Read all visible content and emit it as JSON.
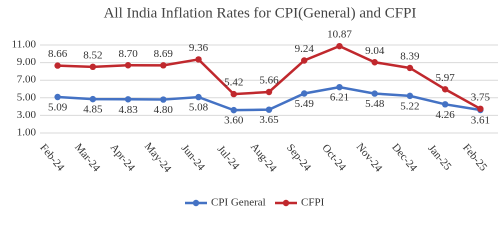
{
  "chart_data": {
    "type": "line",
    "title": "All India Inflation Rates for CPI(General) and CFPI",
    "categories": [
      "Feb-24",
      "Mar-24",
      "Apr-24",
      "May-24",
      "Jun-24",
      "Jul-24",
      "Aug-24",
      "Sep-24",
      "Oct-24",
      "Nov-24",
      "Dec-24",
      "Jan-25",
      "Feb-25"
    ],
    "series": [
      {
        "name": "CPI General",
        "color": "#4472c4",
        "values": [
          5.09,
          4.85,
          4.83,
          4.8,
          5.08,
          3.6,
          3.65,
          5.49,
          6.21,
          5.48,
          5.22,
          4.26,
          3.61
        ],
        "value_labels": [
          "5.09",
          "4.85",
          "4.83",
          "4.80",
          "5.08",
          "3.60",
          "3.65",
          "5.49",
          "6.21",
          "5.48",
          "5.22",
          "4.26",
          "3.61"
        ]
      },
      {
        "name": "CFPI",
        "color": "#c0282d",
        "values": [
          8.66,
          8.52,
          8.7,
          8.69,
          9.36,
          5.42,
          5.66,
          9.24,
          10.87,
          9.04,
          8.39,
          5.97,
          3.75
        ],
        "value_labels": [
          "8.66",
          "8.52",
          "8.70",
          "8.69",
          "9.36",
          "5.42",
          "5.66",
          "9.24",
          "10.87",
          "9.04",
          "8.39",
          "5.97",
          "3.75"
        ]
      }
    ],
    "ylim": [
      1,
      11
    ],
    "yticks": [
      {
        "value": 1,
        "label": "1.00"
      },
      {
        "value": 3,
        "label": "3.00"
      },
      {
        "value": 5,
        "label": "5.00"
      },
      {
        "value": 7,
        "label": "7.00"
      },
      {
        "value": 9,
        "label": "9.00"
      },
      {
        "value": 11,
        "label": "11.00"
      }
    ],
    "grid": true,
    "legend": "bottom"
  }
}
